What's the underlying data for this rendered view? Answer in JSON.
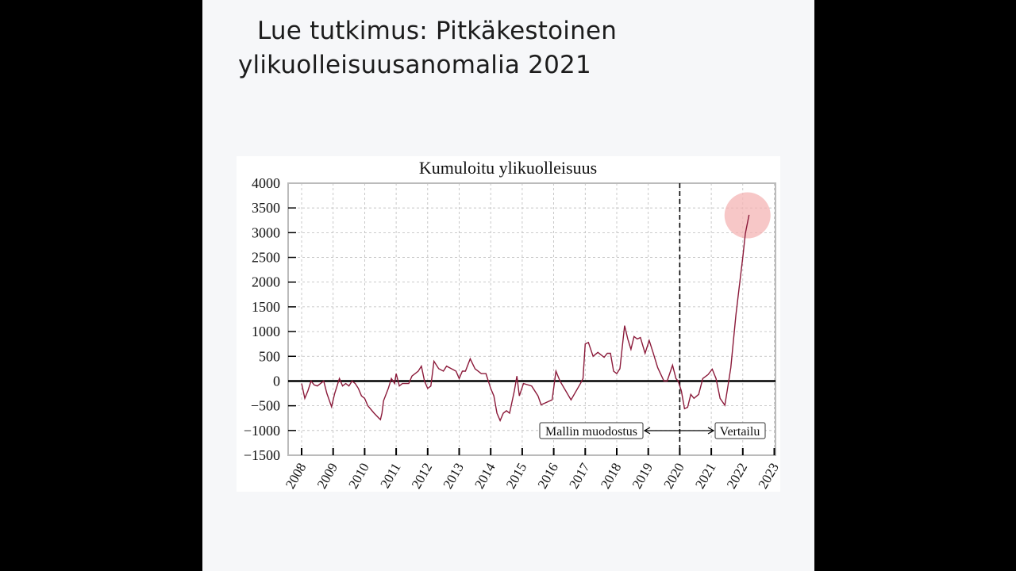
{
  "page": {
    "title_line1": "Lue tutkimus: Pitkäkestoinen",
    "title_line2": "ylikuolleisuusanomalia 2021"
  },
  "chart_data": {
    "type": "line",
    "title": "Kumuloitu ylikuolleisuus",
    "xlabel": "",
    "ylabel": "",
    "xlim": [
      2007.6,
      2023
    ],
    "ylim": [
      -1500,
      4000
    ],
    "grid": true,
    "line_color": "#8b1a3a",
    "highlight_color": "#f4b4b4",
    "y_ticks": [
      4000,
      3500,
      3000,
      2500,
      2000,
      1500,
      1000,
      500,
      0,
      -500,
      -1000,
      -1500
    ],
    "y_tick_labels": [
      "4000",
      "3500",
      "3000",
      "2500",
      "2000",
      "1500",
      "1000",
      "500",
      "0",
      "−500",
      "−1000",
      "−1500"
    ],
    "x_ticks": [
      2008,
      2009,
      2010,
      2011,
      2012,
      2013,
      2014,
      2015,
      2016,
      2017,
      2018,
      2019,
      2020,
      2021,
      2022,
      2023
    ],
    "x_tick_labels": [
      "2008",
      "2009",
      "2010",
      "2011",
      "2012",
      "2013",
      "2014",
      "2015",
      "2016",
      "2017",
      "2018",
      "2019",
      "2020",
      "2021",
      "2022",
      "2023"
    ],
    "vertical_marker": 2020,
    "highlight_point": [
      2022.15,
      3350
    ],
    "annotations": {
      "left": "Mallin muodostus",
      "right": "Vertailu"
    },
    "x": [
      2008.0,
      2008.1,
      2008.2,
      2008.3,
      2008.4,
      2008.5,
      2008.6,
      2008.7,
      2008.8,
      2008.95,
      2009.05,
      2009.2,
      2009.3,
      2009.4,
      2009.5,
      2009.6,
      2009.7,
      2009.8,
      2009.9,
      2010.0,
      2010.1,
      2010.3,
      2010.45,
      2010.5,
      2010.55,
      2010.6,
      2010.75,
      2010.85,
      2010.95,
      2011.0,
      2011.1,
      2011.2,
      2011.4,
      2011.5,
      2011.7,
      2011.8,
      2011.9,
      2012.0,
      2012.1,
      2012.2,
      2012.35,
      2012.5,
      2012.6,
      2012.75,
      2012.9,
      2013.0,
      2013.1,
      2013.2,
      2013.35,
      2013.5,
      2013.7,
      2013.85,
      2014.0,
      2014.1,
      2014.2,
      2014.3,
      2014.4,
      2014.5,
      2014.6,
      2014.75,
      2014.83,
      2014.91,
      2015.04,
      2015.3,
      2015.5,
      2015.6,
      2015.95,
      2016.07,
      2016.2,
      2016.55,
      2016.85,
      2016.93,
      2017.0,
      2017.1,
      2017.25,
      2017.4,
      2017.6,
      2017.7,
      2017.8,
      2017.9,
      2018.0,
      2018.1,
      2018.25,
      2018.35,
      2018.45,
      2018.55,
      2018.65,
      2018.75,
      2018.9,
      2019.03,
      2019.15,
      2019.3,
      2019.5,
      2019.6,
      2019.77,
      2019.88,
      2019.95,
      2020.05,
      2020.15,
      2020.25,
      2020.35,
      2020.45,
      2020.6,
      2020.73,
      2020.9,
      2021.03,
      2021.15,
      2021.28,
      2021.43,
      2021.53,
      2021.62,
      2021.78,
      2021.88,
      2022.0,
      2022.08,
      2022.2
    ],
    "values": [
      -50,
      -350,
      -200,
      0,
      -80,
      -100,
      -50,
      0,
      -250,
      -520,
      -250,
      50,
      -100,
      -50,
      -100,
      0,
      -50,
      -150,
      -300,
      -350,
      -500,
      -650,
      -750,
      -780,
      -650,
      -400,
      -150,
      50,
      -50,
      150,
      -100,
      -50,
      -50,
      100,
      200,
      300,
      0,
      -150,
      -100,
      400,
      250,
      200,
      300,
      250,
      200,
      50,
      200,
      200,
      450,
      250,
      150,
      150,
      -150,
      -300,
      -650,
      -800,
      -650,
      -600,
      -650,
      -200,
      100,
      -300,
      -50,
      -100,
      -300,
      -480,
      -380,
      200,
      0,
      -380,
      -50,
      50,
      750,
      780,
      500,
      580,
      480,
      560,
      560,
      200,
      150,
      250,
      1120,
      850,
      640,
      900,
      850,
      880,
      560,
      820,
      580,
      270,
      0,
      0,
      320,
      50,
      0,
      -200,
      -560,
      -530,
      -270,
      -350,
      -270,
      50,
      130,
      240,
      50,
      -350,
      -490,
      -100,
      270,
      1330,
      1860,
      2500,
      2980,
      3360
    ]
  }
}
